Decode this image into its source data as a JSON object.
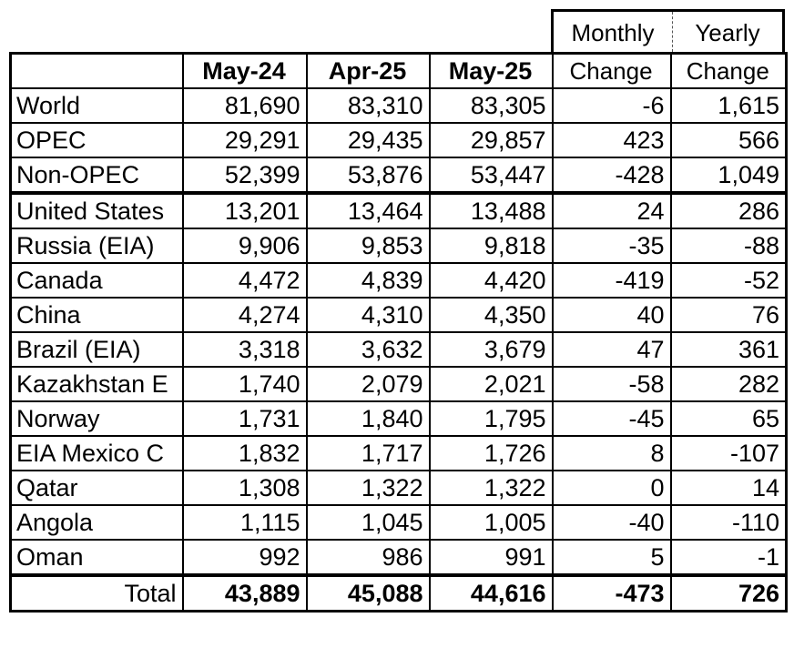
{
  "header": {
    "top": [
      "Monthly",
      "Yearly"
    ],
    "columns": [
      "",
      "May-24",
      "Apr-25",
      "May-25",
      "Change",
      "Change"
    ]
  },
  "rows": [
    {
      "label": "World",
      "v": [
        "81,690",
        "83,310",
        "83,305",
        "-6",
        "1,615"
      ]
    },
    {
      "label": "OPEC",
      "v": [
        "29,291",
        "29,435",
        "29,857",
        "423",
        "566"
      ]
    },
    {
      "label": "Non-OPEC",
      "v": [
        "52,399",
        "53,876",
        "53,447",
        "-428",
        "1,049"
      ]
    },
    {
      "label": "United States",
      "v": [
        "13,201",
        "13,464",
        "13,488",
        "24",
        "286"
      ]
    },
    {
      "label": "Russia (EIA)",
      "v": [
        "9,906",
        "9,853",
        "9,818",
        "-35",
        "-88"
      ]
    },
    {
      "label": "Canada",
      "v": [
        "4,472",
        "4,839",
        "4,420",
        "-419",
        "-52"
      ]
    },
    {
      "label": "China",
      "v": [
        "4,274",
        "4,310",
        "4,350",
        "40",
        "76"
      ]
    },
    {
      "label": "Brazil (EIA)",
      "v": [
        "3,318",
        "3,632",
        "3,679",
        "47",
        "361"
      ]
    },
    {
      "label": "Kazakhstan E",
      "v": [
        "1,740",
        "2,079",
        "2,021",
        "-58",
        "282"
      ]
    },
    {
      "label": "Norway",
      "v": [
        "1,731",
        "1,840",
        "1,795",
        "-45",
        "65"
      ]
    },
    {
      "label": "EIA Mexico C",
      "v": [
        "1,832",
        "1,717",
        "1,726",
        "8",
        "-107"
      ]
    },
    {
      "label": "Qatar",
      "v": [
        "1,308",
        "1,322",
        "1,322",
        "0",
        "14"
      ]
    },
    {
      "label": "Angola",
      "v": [
        "1,115",
        "1,045",
        "1,005",
        "-40",
        "-110"
      ]
    },
    {
      "label": "Oman",
      "v": [
        "992",
        "986",
        "991",
        "5",
        "-1"
      ]
    }
  ],
  "total": {
    "label": "Total",
    "v": [
      "43,889",
      "45,088",
      "44,616",
      "-473",
      "726"
    ]
  }
}
